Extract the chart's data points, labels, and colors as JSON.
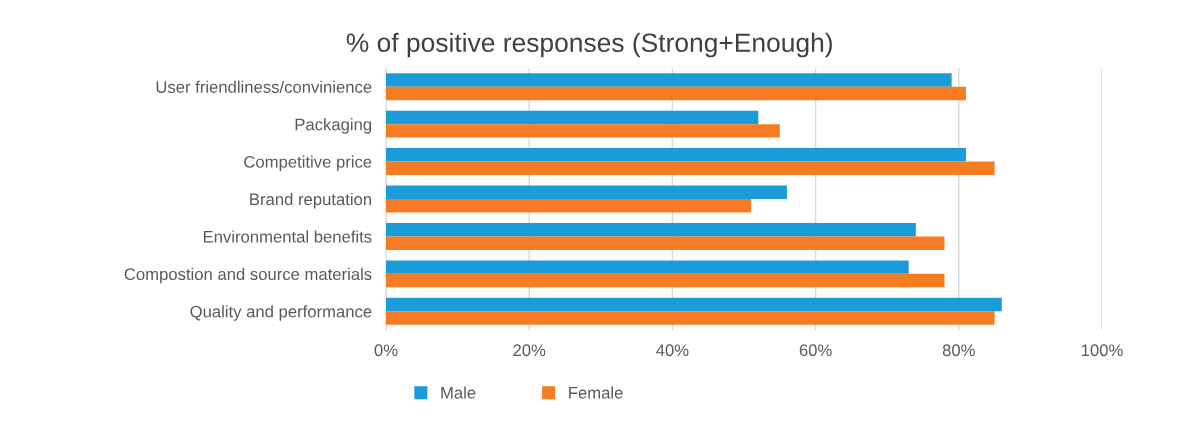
{
  "chart_data": {
    "type": "bar",
    "orientation": "horizontal",
    "title": "% of positive responses (Strong+Enough)",
    "categories": [
      "User friendliness/convinience",
      "Packaging",
      "Competitive price",
      "Brand reputation",
      "Environmental benefits",
      "Compostion and source materials",
      "Quality and performance"
    ],
    "series": [
      {
        "name": "Male",
        "color": "#1b9bd8",
        "values": [
          0.79,
          0.52,
          0.81,
          0.56,
          0.74,
          0.73,
          0.86
        ]
      },
      {
        "name": "Female",
        "color": "#f57c22",
        "values": [
          0.81,
          0.55,
          0.85,
          0.51,
          0.78,
          0.78,
          0.85
        ]
      }
    ],
    "xlim": [
      0,
      1
    ],
    "xticks": [
      {
        "value": 0,
        "label": "0%"
      },
      {
        "value": 0.2,
        "label": "20%"
      },
      {
        "value": 0.4,
        "label": "40%"
      },
      {
        "value": 0.6,
        "label": "60%"
      },
      {
        "value": 0.8,
        "label": "80%"
      },
      {
        "value": 1,
        "label": "100%"
      }
    ],
    "grid": "x",
    "legend": "bottom"
  }
}
